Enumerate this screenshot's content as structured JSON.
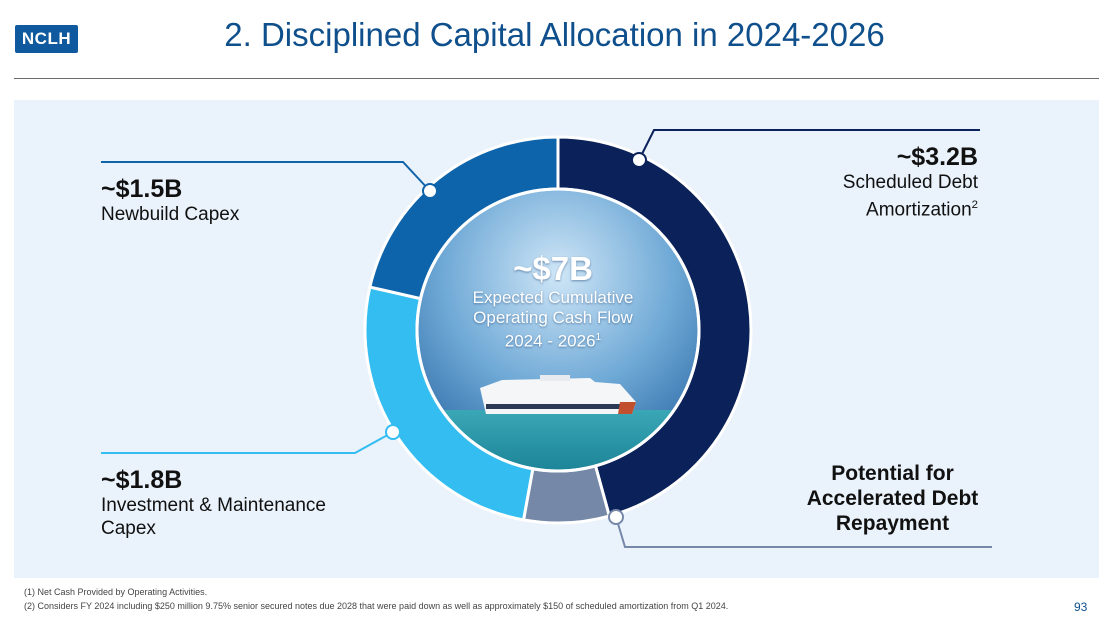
{
  "logo": "NCLH",
  "title": "2. Disciplined Capital Allocation in 2024-2026",
  "chart_data": {
    "type": "pie",
    "variant": "donut",
    "unit": "$B",
    "center": {
      "value": "~$7B",
      "line1": "Expected Cumulative",
      "line2": "Operating Cash Flow",
      "line3": "2024 - 2026",
      "note": "1"
    },
    "slices": [
      {
        "name": "Scheduled Debt Amortization",
        "value": 3.2,
        "color": "#0a2159"
      },
      {
        "name": "Potential for Accelerated Debt Repayment",
        "value": 0.5,
        "color": "#7588a8"
      },
      {
        "name": "Investment & Maintenance Capex",
        "value": 1.8,
        "color": "#34bdf0"
      },
      {
        "name": "Newbuild Capex",
        "value": 1.5,
        "color": "#0e64ab"
      }
    ]
  },
  "labels": {
    "newbuild": {
      "value": "~$1.5B",
      "desc": "Newbuild Capex"
    },
    "investment": {
      "value": "~$1.8B",
      "desc1": "Investment & Maintenance",
      "desc2": "Capex"
    },
    "debt": {
      "value": "~$3.2B",
      "desc1": "Scheduled Debt",
      "desc2": "Amortization",
      "note": "2"
    },
    "accelerated": {
      "line1": "Potential for",
      "line2": "Accelerated Debt",
      "line3": "Repayment"
    }
  },
  "footnotes": {
    "f1": "(1)   Net Cash Provided by Operating Activities.",
    "f2": "(2)   Considers FY 2024 including $250 million 9.75% senior secured notes due 2028 that were paid down as well as approximately $150 of scheduled amortization from Q1 2024."
  },
  "page_number": "93"
}
